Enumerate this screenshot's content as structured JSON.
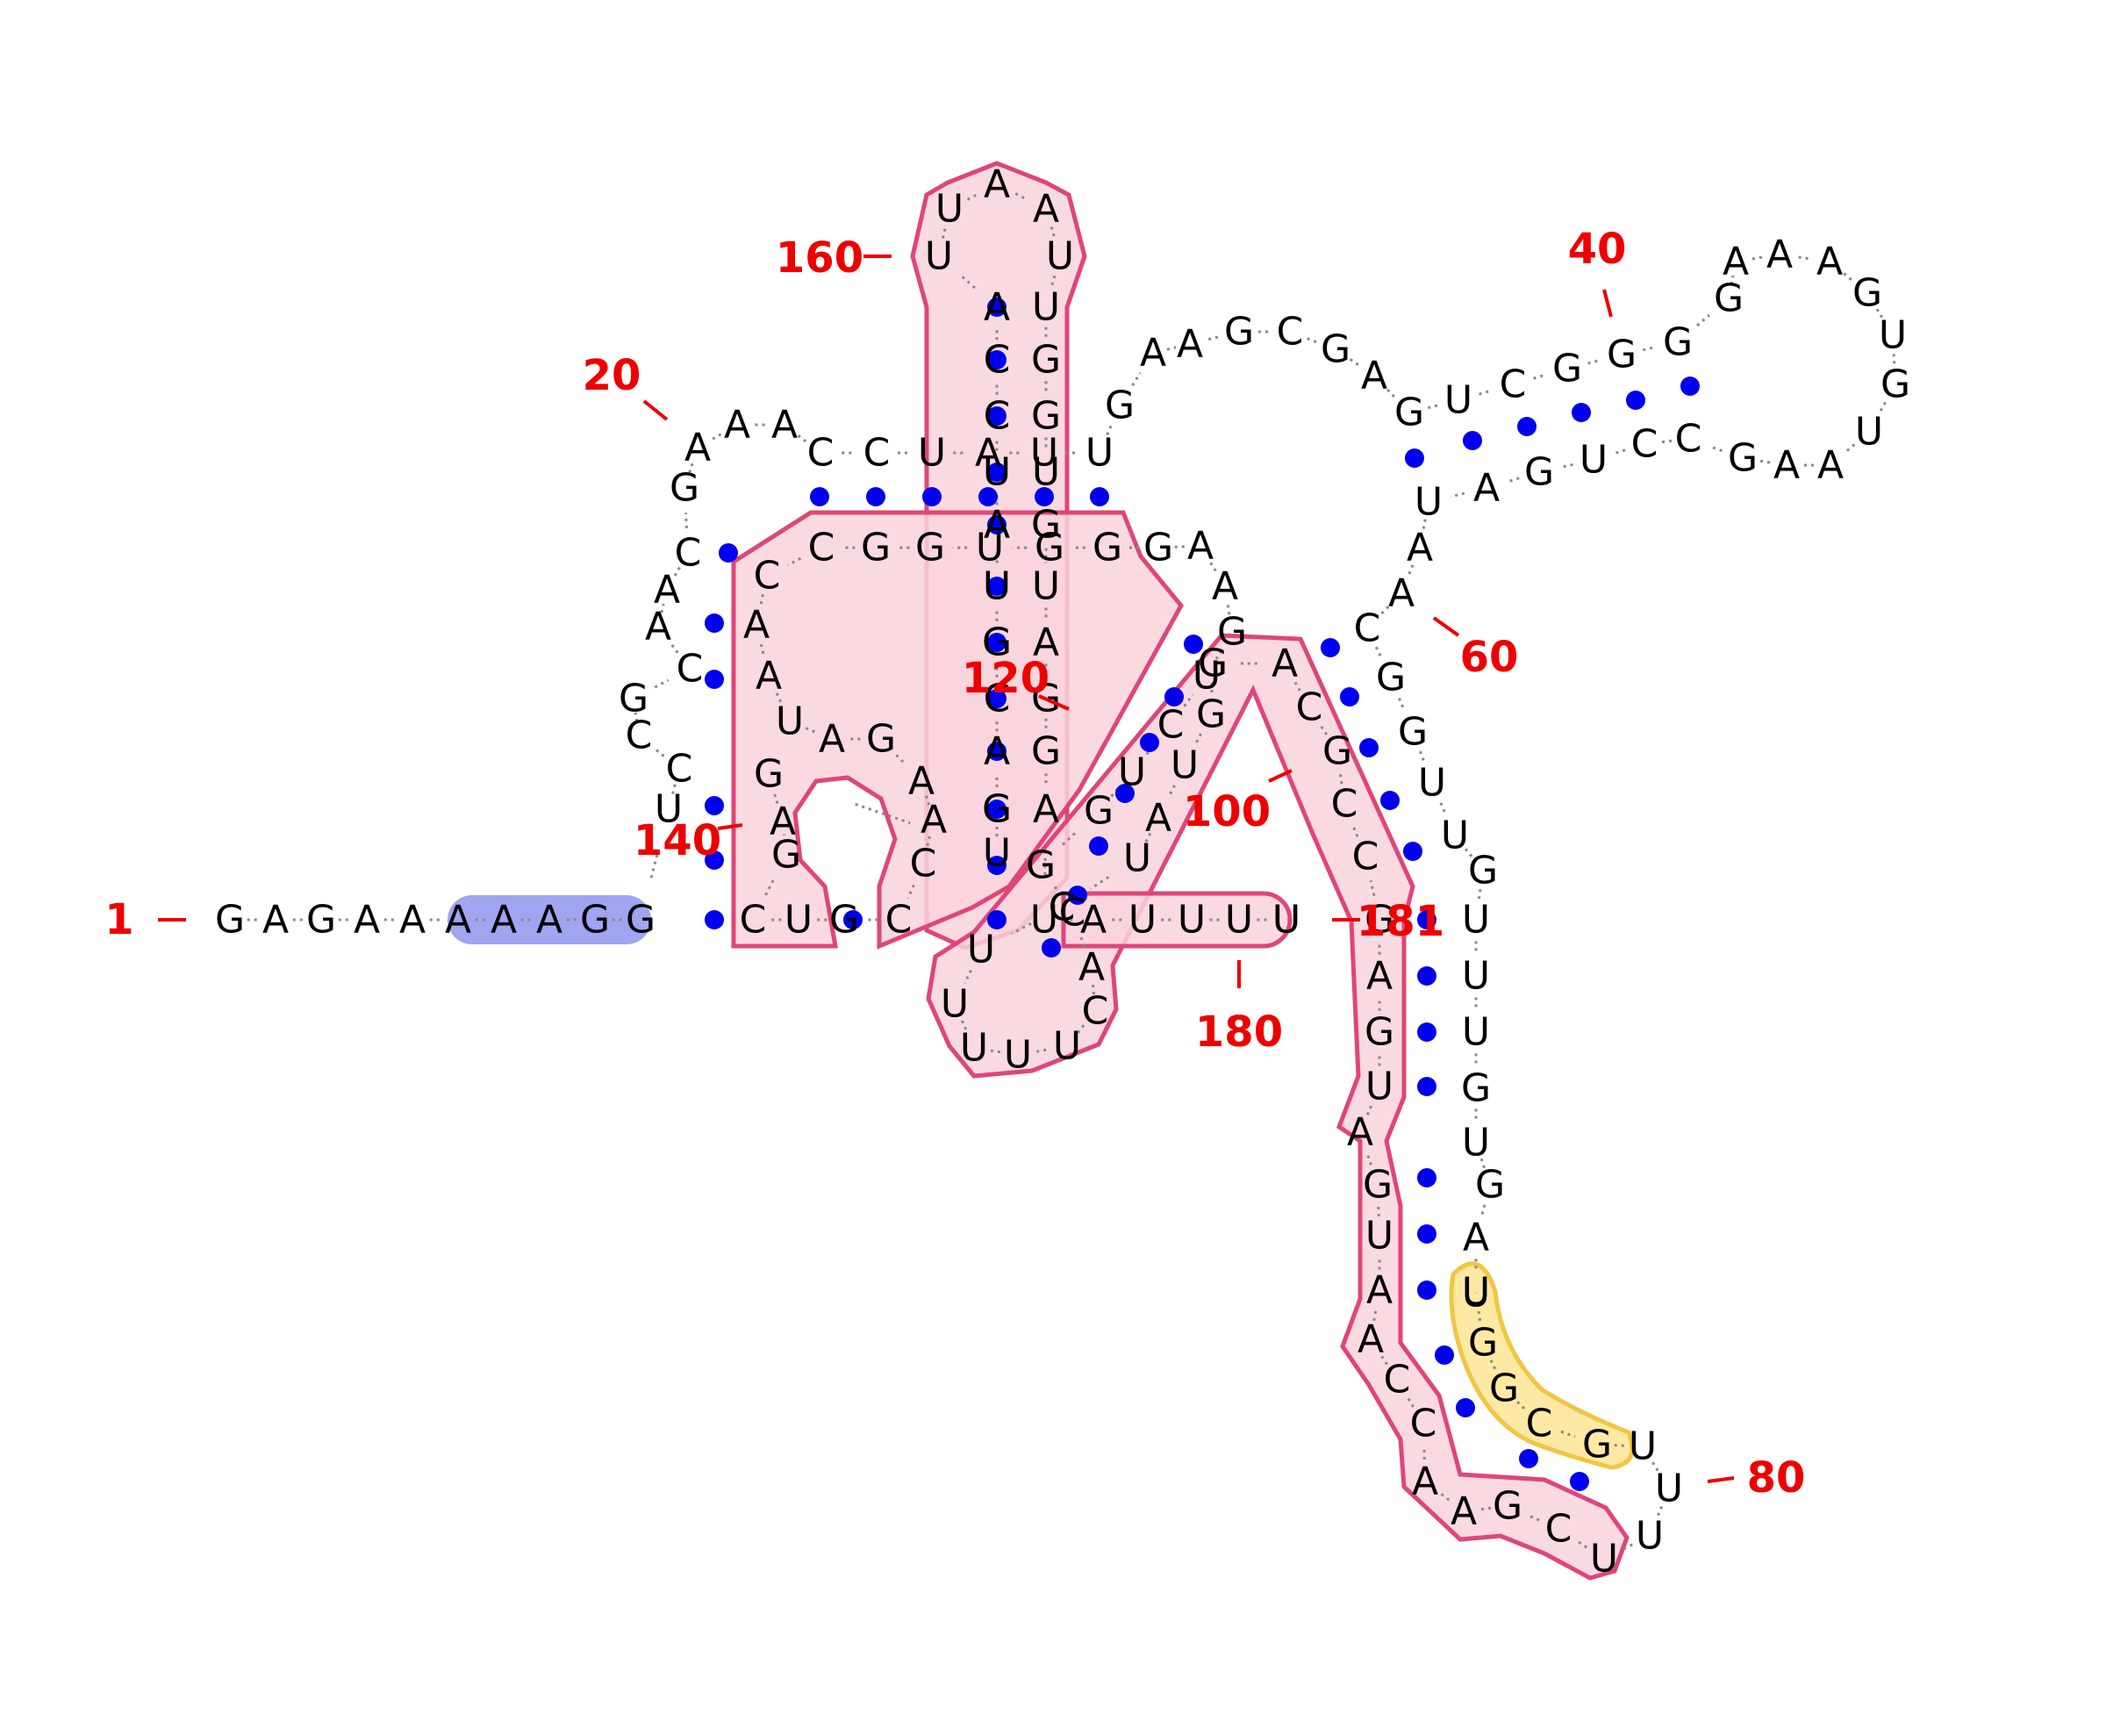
{
  "colors": {
    "nucleotide": "#000000",
    "backbone": "#888888",
    "pair_dot": "#0000ee",
    "number": "#ee0000",
    "highlight_pink_fill": "#f9d3dc",
    "highlight_pink_stroke": "#e0457a",
    "highlight_blue_fill": "#8f94ee",
    "highlight_yellow_fill": "#fde9a3",
    "highlight_yellow_stroke": "#f2c643"
  },
  "sequence": [
    {
      "n": 1,
      "b": "G"
    },
    {
      "n": 2,
      "b": "A"
    },
    {
      "n": 3,
      "b": "G"
    },
    {
      "n": 4,
      "b": "A"
    },
    {
      "n": 5,
      "b": "A"
    },
    {
      "n": 6,
      "b": "A"
    },
    {
      "n": 7,
      "b": "A"
    },
    {
      "n": 8,
      "b": "A"
    },
    {
      "n": 9,
      "b": "G"
    },
    {
      "n": 10,
      "b": "G"
    },
    {
      "n": 11,
      "b": "U"
    },
    {
      "n": 12,
      "b": "C"
    },
    {
      "n": 13,
      "b": "C"
    },
    {
      "n": 14,
      "b": "G"
    },
    {
      "n": 15,
      "b": "C"
    },
    {
      "n": 16,
      "b": "A"
    },
    {
      "n": 17,
      "b": "A"
    },
    {
      "n": 18,
      "b": "C"
    },
    {
      "n": 19,
      "b": "G"
    },
    {
      "n": 20,
      "b": "A"
    },
    {
      "n": 21,
      "b": "A"
    },
    {
      "n": 22,
      "b": "A"
    },
    {
      "n": 23,
      "b": "C"
    },
    {
      "n": 24,
      "b": "C"
    },
    {
      "n": 25,
      "b": "U"
    },
    {
      "n": 26,
      "b": "A"
    },
    {
      "n": 27,
      "b": "U"
    },
    {
      "n": 28,
      "b": "U"
    },
    {
      "n": 29,
      "b": "G"
    },
    {
      "n": 30,
      "b": "A"
    },
    {
      "n": 31,
      "b": "A"
    },
    {
      "n": 32,
      "b": "G"
    },
    {
      "n": 33,
      "b": "C"
    },
    {
      "n": 34,
      "b": "G"
    },
    {
      "n": 35,
      "b": "A"
    },
    {
      "n": 36,
      "b": "G"
    },
    {
      "n": 37,
      "b": "U"
    },
    {
      "n": 38,
      "b": "C"
    },
    {
      "n": 39,
      "b": "G"
    },
    {
      "n": 40,
      "b": "G"
    },
    {
      "n": 41,
      "b": "G"
    },
    {
      "n": 42,
      "b": "G"
    },
    {
      "n": 43,
      "b": "A"
    },
    {
      "n": 44,
      "b": "A"
    },
    {
      "n": 45,
      "b": "A"
    },
    {
      "n": 46,
      "b": "G"
    },
    {
      "n": 47,
      "b": "U"
    },
    {
      "n": 48,
      "b": "G"
    },
    {
      "n": 49,
      "b": "U"
    },
    {
      "n": 50,
      "b": "A"
    },
    {
      "n": 51,
      "b": "A"
    },
    {
      "n": 52,
      "b": "G"
    },
    {
      "n": 53,
      "b": "C"
    },
    {
      "n": 54,
      "b": "C"
    },
    {
      "n": 55,
      "b": "U"
    },
    {
      "n": 56,
      "b": "G"
    },
    {
      "n": 57,
      "b": "A"
    },
    {
      "n": 58,
      "b": "U"
    },
    {
      "n": 59,
      "b": "A"
    },
    {
      "n": 60,
      "b": "A"
    },
    {
      "n": 61,
      "b": "C"
    },
    {
      "n": 62,
      "b": "G"
    },
    {
      "n": 63,
      "b": "G"
    },
    {
      "n": 64,
      "b": "U"
    },
    {
      "n": 65,
      "b": "U"
    },
    {
      "n": 66,
      "b": "G"
    },
    {
      "n": 67,
      "b": "U"
    },
    {
      "n": 68,
      "b": "U"
    },
    {
      "n": 69,
      "b": "U"
    },
    {
      "n": 70,
      "b": "G"
    },
    {
      "n": 71,
      "b": "U"
    },
    {
      "n": 72,
      "b": "G"
    },
    {
      "n": 73,
      "b": "A"
    },
    {
      "n": 74,
      "b": "U"
    },
    {
      "n": 75,
      "b": "U"
    },
    {
      "n": 76,
      "b": "G"
    },
    {
      "n": 77,
      "b": "G"
    },
    {
      "n": 78,
      "b": "C"
    },
    {
      "n": 79,
      "b": "G"
    },
    {
      "n": 80,
      "b": "U"
    },
    {
      "n": 81,
      "b": "U"
    },
    {
      "n": 82,
      "b": "U"
    },
    {
      "n": 83,
      "b": "U"
    },
    {
      "n": 84,
      "b": "C"
    },
    {
      "n": 85,
      "b": "G"
    },
    {
      "n": 86,
      "b": "A"
    },
    {
      "n": 87,
      "b": "A"
    },
    {
      "n": 88,
      "b": "C"
    },
    {
      "n": 89,
      "b": "C"
    },
    {
      "n": 90,
      "b": "A"
    },
    {
      "n": 91,
      "b": "A"
    },
    {
      "n": 92,
      "b": "U"
    },
    {
      "n": 93,
      "b": "G"
    },
    {
      "n": 94,
      "b": "A"
    },
    {
      "n": 95,
      "b": "U"
    },
    {
      "n": 96,
      "b": "G"
    },
    {
      "n": 97,
      "b": "A"
    },
    {
      "n": 98,
      "b": "G"
    },
    {
      "n": 99,
      "b": "C"
    },
    {
      "n": 100,
      "b": "C"
    },
    {
      "n": 101,
      "b": "G"
    },
    {
      "n": 102,
      "b": "C"
    },
    {
      "n": 103,
      "b": "A"
    },
    {
      "n": 104,
      "b": "G"
    },
    {
      "n": 105,
      "b": "G"
    },
    {
      "n": 106,
      "b": "U"
    },
    {
      "n": 107,
      "b": "A"
    },
    {
      "n": 108,
      "b": "U"
    },
    {
      "n": 109,
      "b": "C"
    },
    {
      "n": 110,
      "b": "U"
    },
    {
      "n": 111,
      "b": "U"
    },
    {
      "n": 112,
      "b": "U"
    },
    {
      "n": 113,
      "b": "U"
    },
    {
      "n": 114,
      "b": "U"
    },
    {
      "n": 115,
      "b": "C"
    },
    {
      "n": 116,
      "b": "A"
    },
    {
      "n": 117,
      "b": "C"
    },
    {
      "n": 118,
      "b": "G"
    },
    {
      "n": 119,
      "b": "G"
    },
    {
      "n": 120,
      "b": "U"
    },
    {
      "n": 121,
      "b": "C"
    },
    {
      "n": 122,
      "b": "U"
    },
    {
      "n": 123,
      "b": "G"
    },
    {
      "n": 124,
      "b": "A"
    },
    {
      "n": 125,
      "b": "A"
    },
    {
      "n": 126,
      "b": "G"
    },
    {
      "n": 127,
      "b": "G"
    },
    {
      "n": 128,
      "b": "G"
    },
    {
      "n": 129,
      "b": "U"
    },
    {
      "n": 130,
      "b": "G"
    },
    {
      "n": 131,
      "b": "G"
    },
    {
      "n": 132,
      "b": "C"
    },
    {
      "n": 133,
      "b": "C"
    },
    {
      "n": 134,
      "b": "A"
    },
    {
      "n": 135,
      "b": "A"
    },
    {
      "n": 136,
      "b": "U"
    },
    {
      "n": 137,
      "b": "A"
    },
    {
      "n": 138,
      "b": "G"
    },
    {
      "n": 139,
      "b": "A"
    },
    {
      "n": 140,
      "b": "A"
    },
    {
      "n": 141,
      "b": "C"
    },
    {
      "n": 142,
      "b": "C"
    },
    {
      "n": 143,
      "b": "G"
    },
    {
      "n": 144,
      "b": "U"
    },
    {
      "n": 145,
      "b": "C"
    },
    {
      "n": 146,
      "b": "G"
    },
    {
      "n": 147,
      "b": "A"
    },
    {
      "n": 148,
      "b": "G"
    },
    {
      "n": 149,
      "b": "U"
    },
    {
      "n": 150,
      "b": "G"
    },
    {
      "n": 151,
      "b": "A"
    },
    {
      "n": 152,
      "b": "C"
    },
    {
      "n": 153,
      "b": "G"
    },
    {
      "n": 154,
      "b": "U"
    },
    {
      "n": 155,
      "b": "A"
    },
    {
      "n": 156,
      "b": "U"
    },
    {
      "n": 157,
      "b": "C"
    },
    {
      "n": 158,
      "b": "C"
    },
    {
      "n": 159,
      "b": "A"
    },
    {
      "n": 160,
      "b": "U"
    },
    {
      "n": 161,
      "b": "U"
    },
    {
      "n": 162,
      "b": "A"
    },
    {
      "n": 163,
      "b": "A"
    },
    {
      "n": 164,
      "b": "U"
    },
    {
      "n": 165,
      "b": "U"
    },
    {
      "n": 166,
      "b": "G"
    },
    {
      "n": 167,
      "b": "G"
    },
    {
      "n": 168,
      "b": "U"
    },
    {
      "n": 169,
      "b": "G"
    },
    {
      "n": 170,
      "b": "U"
    },
    {
      "n": 171,
      "b": "A"
    },
    {
      "n": 172,
      "b": "G"
    },
    {
      "n": 173,
      "b": "G"
    },
    {
      "n": 174,
      "b": "A"
    },
    {
      "n": 175,
      "b": "U"
    },
    {
      "n": 176,
      "b": "A"
    },
    {
      "n": 177,
      "b": "U"
    },
    {
      "n": 178,
      "b": "U"
    },
    {
      "n": 179,
      "b": "U"
    },
    {
      "n": 180,
      "b": "U"
    },
    {
      "n": 181,
      "b": "U"
    }
  ],
  "position_labels": [
    "1",
    "20",
    "40",
    "60",
    "80",
    "100",
    "120",
    "140",
    "160",
    "180",
    "181"
  ]
}
